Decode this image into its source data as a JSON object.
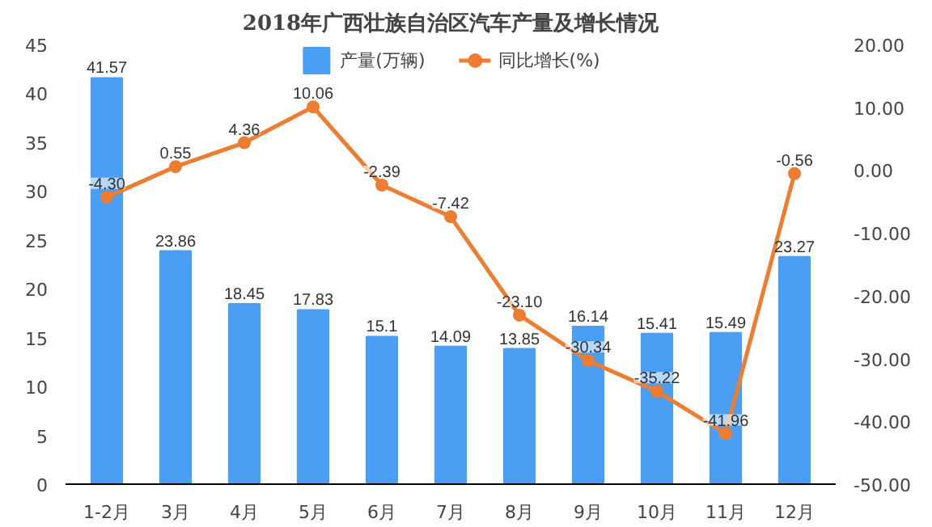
{
  "chart_data": {
    "type": "bar",
    "title": "2018年广西壮族自治区汽车产量及增长情况",
    "categories": [
      "1-2月",
      "3月",
      "4月",
      "5月",
      "6月",
      "7月",
      "8月",
      "9月",
      "10月",
      "11月",
      "12月"
    ],
    "series": [
      {
        "name": "产量(万辆)",
        "color": "#4a9ff5",
        "values": [
          41.57,
          23.86,
          18.45,
          17.83,
          15.1,
          14.09,
          13.85,
          16.14,
          15.41,
          15.49,
          23.27
        ],
        "value_labels": [
          "41.57",
          "23.86",
          "18.45",
          "17.83",
          "15.1",
          "14.09",
          "13.85",
          "16.14",
          "15.41",
          "15.49",
          "23.27"
        ]
      },
      {
        "name": "同比增长(%)",
        "type": "line",
        "axis": "y2",
        "color": "#ed7d31",
        "marker": "circle",
        "values": [
          -4.3,
          0.55,
          4.36,
          10.06,
          -2.39,
          -7.42,
          -23.1,
          -30.34,
          -35.22,
          -41.96,
          -0.56
        ],
        "value_labels": [
          "-4.30",
          "0.55",
          "4.36",
          "10.06",
          "-2.39",
          "-7.42",
          "-23.10",
          "-30.34",
          "-35.22",
          "-41.96",
          "-0.56"
        ]
      }
    ],
    "ylim": [
      0,
      45
    ],
    "yticks": [
      0,
      5,
      10,
      15,
      20,
      25,
      30,
      35,
      40,
      45
    ],
    "y2lim": [
      -50,
      20
    ],
    "y2ticks": [
      {
        "value": -50,
        "label": "-50.00"
      },
      {
        "value": -40,
        "label": "-40.00"
      },
      {
        "value": -30,
        "label": "-30.00"
      },
      {
        "value": -20,
        "label": "-20.00"
      },
      {
        "value": -10,
        "label": "-10.00"
      },
      {
        "value": 0,
        "label": "0.00"
      },
      {
        "value": 10,
        "label": "10.00"
      },
      {
        "value": 20,
        "label": "20.00"
      }
    ],
    "legend": "top",
    "grid": false
  }
}
